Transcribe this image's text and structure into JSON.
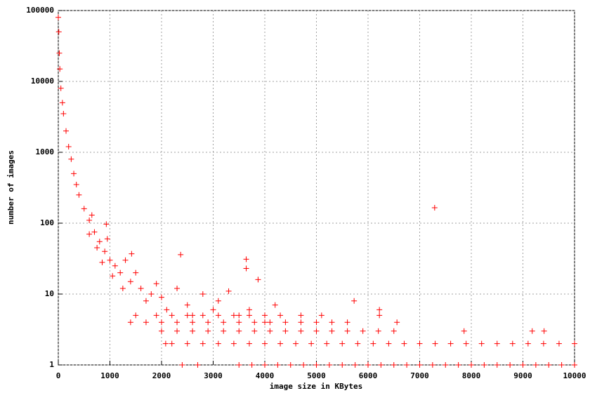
{
  "chart_data": {
    "type": "scatter",
    "xlabel": "image size in KBytes",
    "ylabel": "number of images",
    "color": "#ff0000",
    "grid": true,
    "log_y": true,
    "xlim": [
      0,
      10000
    ],
    "ylim": [
      1,
      100000
    ],
    "xticks": [
      0,
      1000,
      2000,
      3000,
      4000,
      5000,
      6000,
      7000,
      8000,
      9000,
      10000
    ],
    "yticks": [
      1,
      10,
      100,
      1000,
      10000,
      100000
    ],
    "x": [
      0,
      10,
      20,
      30,
      50,
      80,
      100,
      150,
      200,
      250,
      300,
      350,
      400,
      500,
      600,
      700,
      800,
      900,
      1000,
      1200,
      1400,
      1600,
      1800,
      2000,
      2500,
      3000,
      3500,
      4000,
      600,
      650,
      750,
      850,
      950,
      1050,
      1100,
      1250,
      1300,
      1500,
      1700,
      1900,
      2100,
      2300,
      2600,
      2800,
      3100,
      3300,
      3700,
      4200,
      930,
      1420,
      2370,
      3640,
      3640,
      3870,
      7290,
      5730,
      6220,
      6220,
      6560,
      7860,
      9180,
      9410,
      2400,
      2700,
      3500,
      3750,
      4000,
      4250,
      4500,
      4750,
      5000,
      5250,
      5500,
      5750,
      6000,
      6250,
      6500,
      6750,
      7000,
      7250,
      7500,
      7750,
      8000,
      8250,
      8500,
      8750,
      9000,
      9250,
      9500,
      9750,
      10000,
      2080,
      2200,
      2500,
      2800,
      3100,
      3400,
      3700,
      4000,
      4300,
      4600,
      4900,
      5200,
      5500,
      5800,
      6100,
      6400,
      6700,
      7000,
      7300,
      7600,
      7900,
      8200,
      8500,
      8800,
      9100,
      9400,
      9700,
      10000,
      2000,
      2300,
      2600,
      2900,
      3200,
      3500,
      3800,
      4100,
      4400,
      4700,
      5000,
      5300,
      5600,
      5900,
      6200,
      6500,
      1400,
      1700,
      2000,
      2300,
      2600,
      2900,
      3200,
      3500,
      3800,
      4100,
      4400,
      4700,
      5000,
      5300,
      5600,
      1500,
      1900,
      2200,
      2500,
      2800,
      3100,
      3400,
      3700,
      4000,
      4300,
      4700,
      5100
    ],
    "values": [
      80000,
      50000,
      25000,
      15000,
      8000,
      5000,
      3500,
      2000,
      1200,
      800,
      500,
      350,
      250,
      160,
      110,
      75,
      55,
      40,
      30,
      20,
      15,
      12,
      10,
      9,
      7,
      6,
      5,
      4,
      70,
      130,
      45,
      28,
      60,
      18,
      25,
      12,
      30,
      20,
      8,
      14,
      6,
      12,
      5,
      10,
      8,
      11,
      6,
      7,
      97,
      37,
      36,
      31,
      23,
      16,
      165,
      8,
      6,
      5,
      4,
      3,
      3,
      3,
      1,
      1,
      1,
      1,
      1,
      1,
      1,
      1,
      1,
      1,
      1,
      1,
      1,
      1,
      1,
      1,
      1,
      1,
      1,
      1,
      1,
      1,
      1,
      1,
      1,
      1,
      1,
      1,
      1,
      2,
      2,
      2,
      2,
      2,
      2,
      2,
      2,
      2,
      2,
      2,
      2,
      2,
      2,
      2,
      2,
      2,
      2,
      2,
      2,
      2,
      2,
      2,
      2,
      2,
      2,
      2,
      2,
      3,
      3,
      3,
      3,
      3,
      3,
      3,
      3,
      3,
      3,
      3,
      3,
      3,
      3,
      3,
      3,
      4,
      4,
      4,
      4,
      4,
      4,
      4,
      4,
      4,
      4,
      4,
      4,
      4,
      4,
      4,
      5,
      5,
      5,
      5,
      5,
      5,
      5,
      5,
      5,
      5,
      5,
      5
    ]
  }
}
